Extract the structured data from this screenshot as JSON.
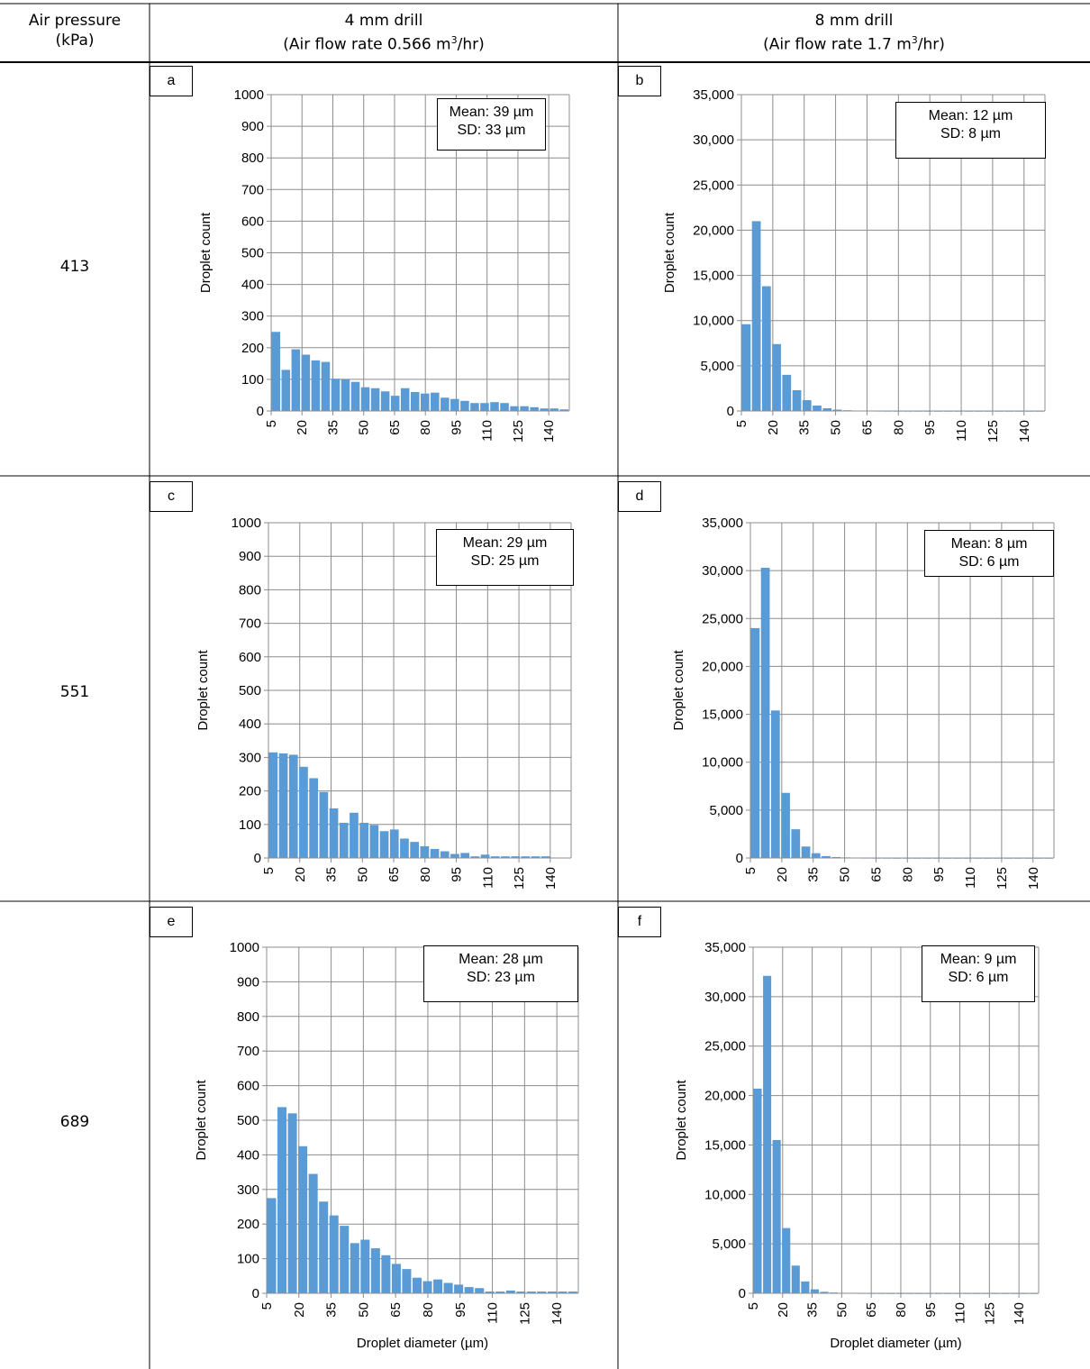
{
  "table": {
    "header": {
      "col1_line1": "Air pressure",
      "col1_line2": "(kPa)",
      "col2_line1": "4 mm drill",
      "col2_line2_pre": "(Air flow rate 0.566 m",
      "col2_line2_sup": "3",
      "col2_line2_post": "/hr)",
      "col3_line1": "8 mm drill",
      "col3_line2_pre": "(Air flow rate 1.7 m",
      "col3_line2_sup": "3",
      "col3_line2_post": "/hr)"
    },
    "rows": [
      "413",
      "551",
      "689"
    ]
  },
  "chart_data": [
    {
      "panel": "a",
      "type": "bar",
      "stats": {
        "mean": "Mean: 39 µm",
        "sd": "SD: 33 µm"
      },
      "ylabel": "Droplet count",
      "xlabel": "",
      "ylim": [
        0,
        1000
      ],
      "y_ticks": [
        "0",
        "100",
        "200",
        "300",
        "400",
        "500",
        "600",
        "700",
        "800",
        "900",
        "1000"
      ],
      "x_ticks": [
        "5",
        "20",
        "35",
        "50",
        "65",
        "80",
        "95",
        "110",
        "125",
        "140"
      ],
      "bin_start": 5,
      "bin_width": 5,
      "x_max": 150,
      "values": [
        250,
        130,
        195,
        178,
        160,
        155,
        102,
        100,
        92,
        75,
        72,
        62,
        48,
        72,
        60,
        55,
        58,
        42,
        38,
        32,
        25,
        25,
        28,
        25,
        15,
        15,
        12,
        8,
        8,
        5
      ]
    },
    {
      "panel": "b",
      "type": "bar",
      "stats": {
        "mean": "Mean: 12 µm",
        "sd": "SD: 8 µm"
      },
      "ylabel": "Droplet count",
      "xlabel": "",
      "ylim": [
        0,
        35000
      ],
      "y_ticks": [
        "0",
        "5,000",
        "10,000",
        "15,000",
        "20,000",
        "25,000",
        "30,000",
        "35,000"
      ],
      "x_ticks": [
        "5",
        "20",
        "35",
        "50",
        "65",
        "80",
        "95",
        "110",
        "125",
        "140"
      ],
      "bin_start": 5,
      "bin_width": 5,
      "x_max": 150,
      "values": [
        9600,
        21000,
        13800,
        7400,
        4000,
        2300,
        1200,
        600,
        300,
        150,
        80,
        50,
        30,
        20,
        15,
        10,
        10,
        8,
        5,
        5,
        5,
        5,
        5,
        5,
        5,
        5,
        5,
        5,
        5,
        5
      ]
    },
    {
      "panel": "c",
      "type": "bar",
      "stats": {
        "mean": "Mean: 29 µm",
        "sd": "SD: 25 µm"
      },
      "ylabel": "Droplet count",
      "xlabel": "",
      "ylim": [
        0,
        1000
      ],
      "y_ticks": [
        "0",
        "100",
        "200",
        "300",
        "400",
        "500",
        "600",
        "700",
        "800",
        "900",
        "1000"
      ],
      "x_ticks": [
        "5",
        "20",
        "35",
        "50",
        "65",
        "80",
        "95",
        "110",
        "125",
        "140"
      ],
      "bin_start": 5,
      "bin_width": 5,
      "x_max": 150,
      "values": [
        315,
        312,
        308,
        272,
        238,
        197,
        148,
        105,
        135,
        105,
        98,
        80,
        85,
        58,
        48,
        35,
        27,
        20,
        12,
        15,
        5,
        10,
        5,
        5,
        5,
        5,
        5,
        5,
        0,
        0
      ]
    },
    {
      "panel": "d",
      "type": "bar",
      "stats": {
        "mean": "Mean: 8 µm",
        "sd": "SD: 6 µm"
      },
      "ylabel": "Droplet count",
      "xlabel": "",
      "ylim": [
        0,
        35000
      ],
      "y_ticks": [
        "0",
        "5,000",
        "10,000",
        "15,000",
        "20,000",
        "25,000",
        "30,000",
        "35,000"
      ],
      "x_ticks": [
        "5",
        "20",
        "35",
        "50",
        "65",
        "80",
        "95",
        "110",
        "125",
        "140"
      ],
      "bin_start": 5,
      "bin_width": 5,
      "x_max": 150,
      "values": [
        24000,
        30300,
        15400,
        6800,
        3000,
        1200,
        500,
        200,
        100,
        60,
        30,
        20,
        10,
        10,
        5,
        5,
        5,
        5,
        5,
        5,
        5,
        5,
        5,
        5,
        5,
        5,
        5,
        5,
        5,
        5
      ]
    },
    {
      "panel": "e",
      "type": "bar",
      "stats": {
        "mean": "Mean: 28 µm",
        "sd": "SD: 23 µm"
      },
      "ylabel": "Droplet count",
      "xlabel": "Droplet diameter (µm)",
      "ylim": [
        0,
        1000
      ],
      "y_ticks": [
        "0",
        "100",
        "200",
        "300",
        "400",
        "500",
        "600",
        "700",
        "800",
        "900",
        "1000"
      ],
      "x_ticks": [
        "5",
        "20",
        "35",
        "50",
        "65",
        "80",
        "95",
        "110",
        "125",
        "140"
      ],
      "bin_start": 5,
      "bin_width": 5,
      "x_max": 150,
      "values": [
        275,
        538,
        520,
        425,
        345,
        265,
        225,
        195,
        145,
        155,
        130,
        110,
        85,
        70,
        45,
        35,
        40,
        30,
        25,
        18,
        15,
        5,
        5,
        8,
        5,
        5,
        5,
        5,
        5,
        5
      ]
    },
    {
      "panel": "f",
      "type": "bar",
      "stats": {
        "mean": "Mean: 9 µm",
        "sd": "SD: 6 µm"
      },
      "ylabel": "Droplet count",
      "xlabel": "Droplet diameter (µm)",
      "ylim": [
        0,
        35000
      ],
      "y_ticks": [
        "0",
        "5,000",
        "10,000",
        "15,000",
        "20,000",
        "25,000",
        "30,000",
        "35,000"
      ],
      "x_ticks": [
        "5",
        "20",
        "35",
        "50",
        "65",
        "80",
        "95",
        "110",
        "125",
        "140"
      ],
      "bin_start": 5,
      "bin_width": 5,
      "x_max": 150,
      "values": [
        20700,
        32100,
        15500,
        6600,
        2800,
        1200,
        400,
        150,
        80,
        50,
        30,
        20,
        10,
        10,
        5,
        5,
        5,
        5,
        5,
        5,
        5,
        5,
        5,
        5,
        5,
        5,
        5,
        5,
        5,
        5
      ]
    }
  ]
}
